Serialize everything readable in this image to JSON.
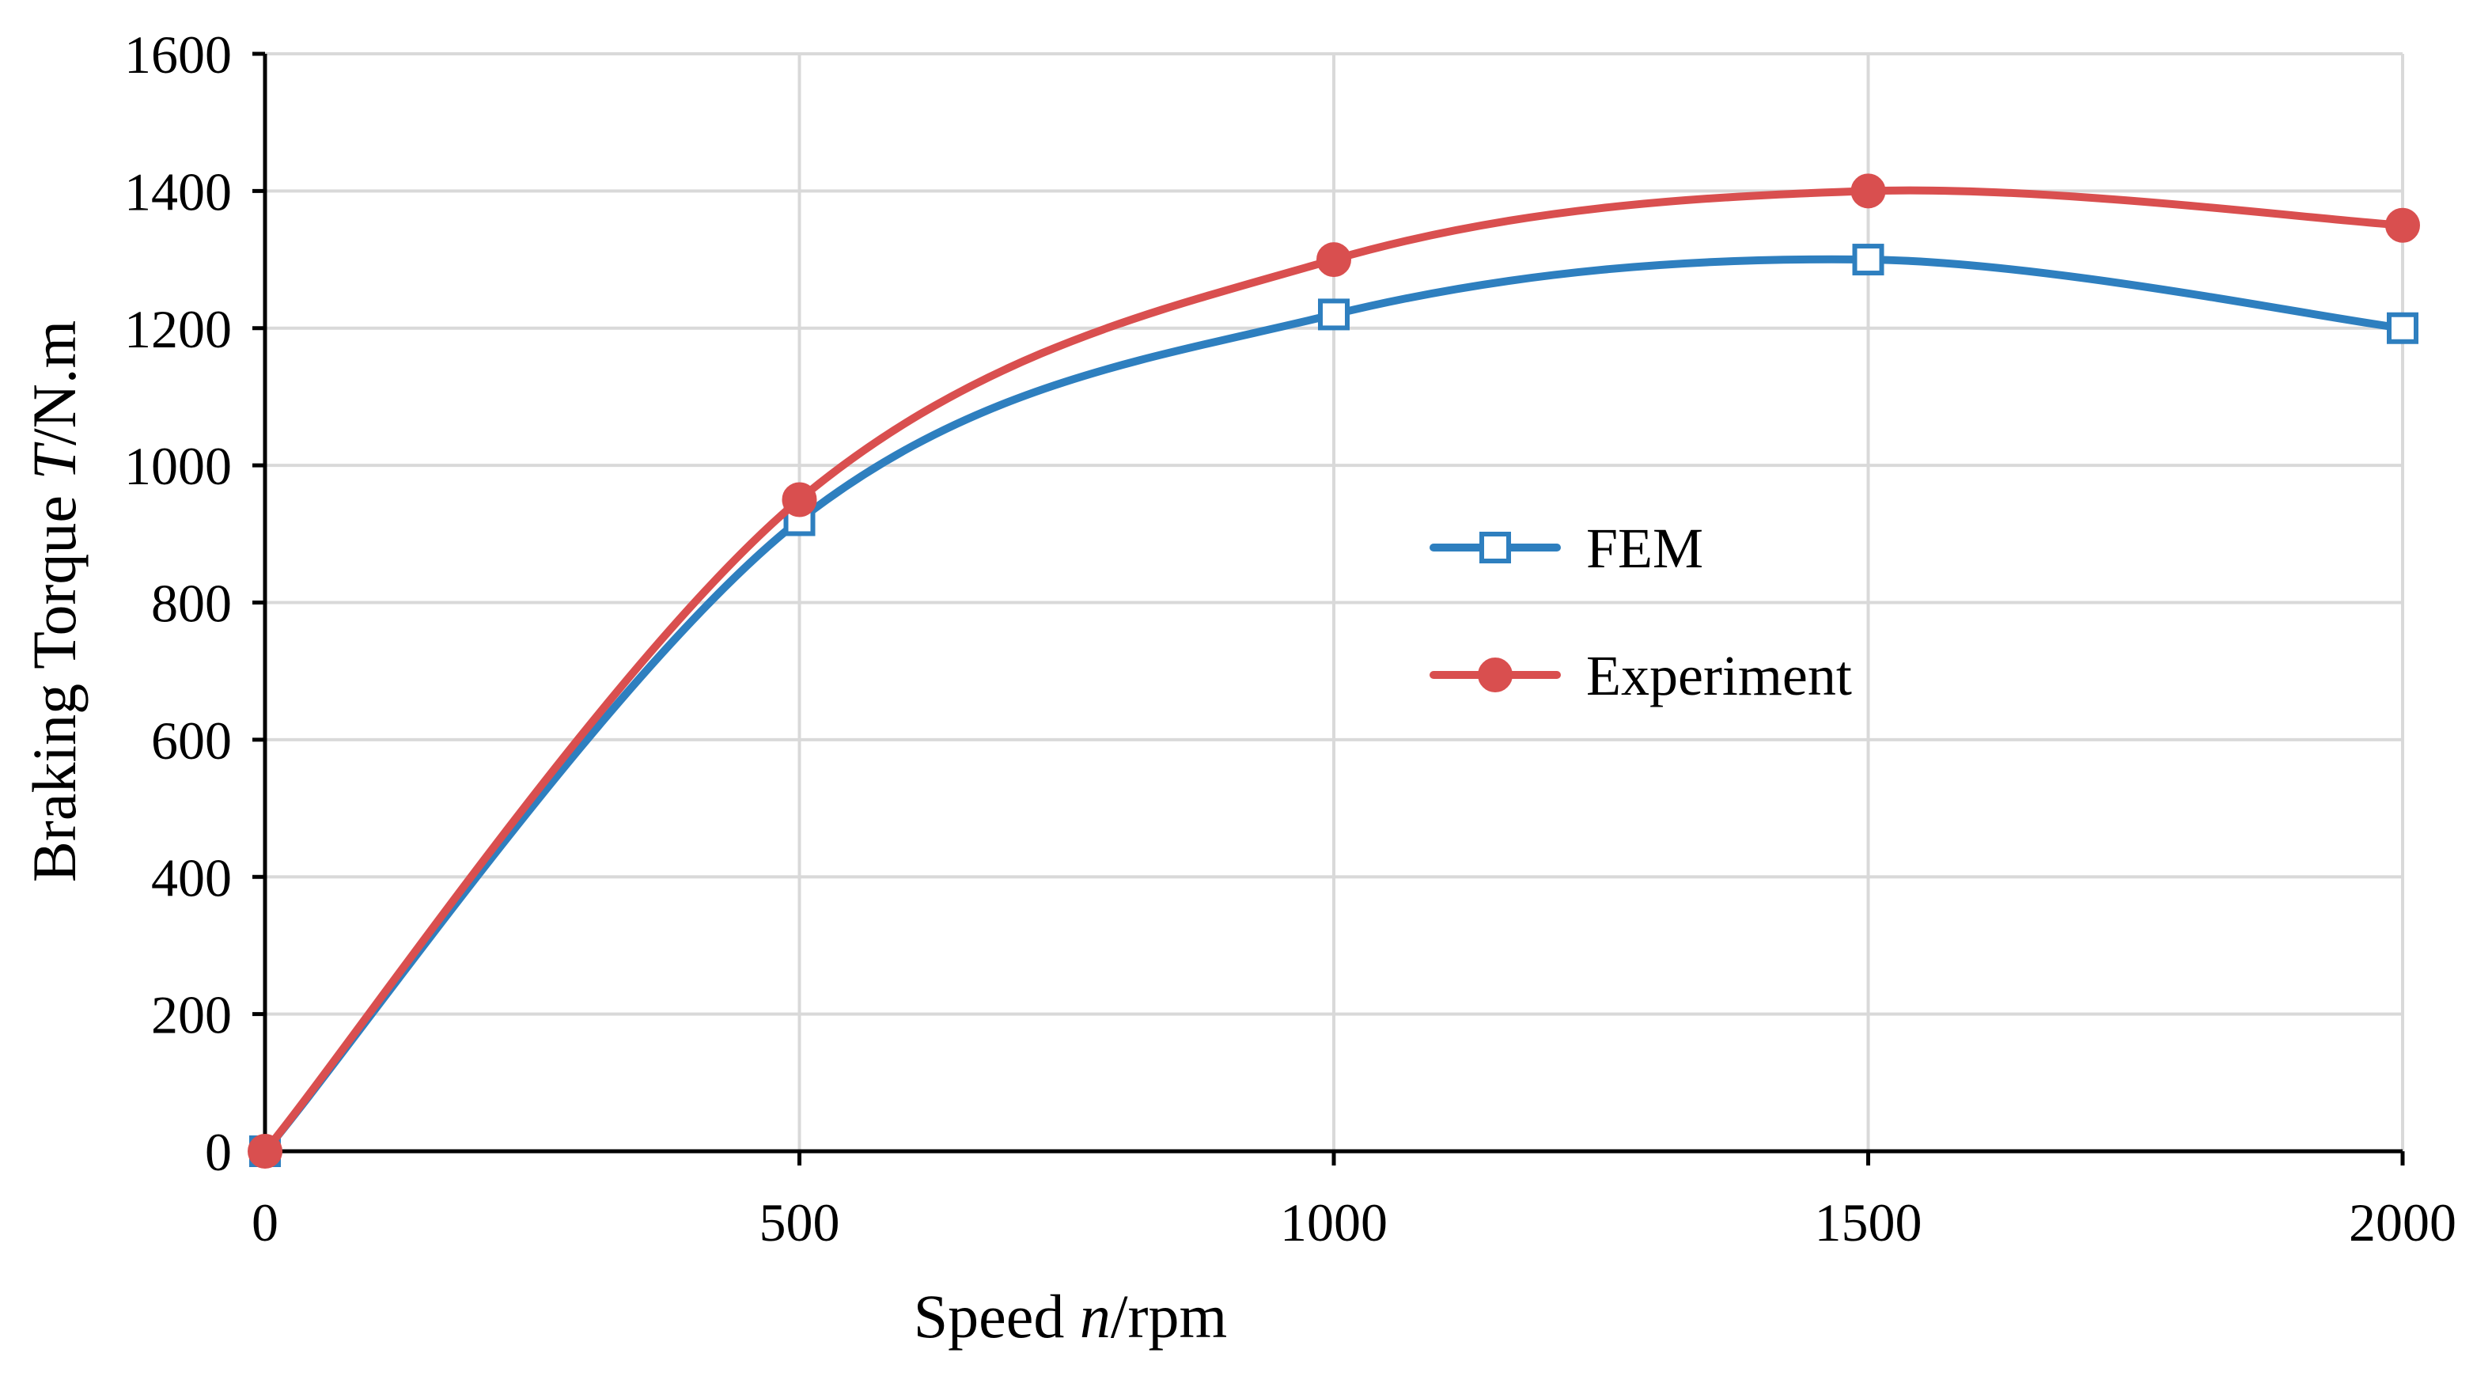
{
  "chart_data": {
    "type": "line",
    "title": "",
    "xlabel_prefix": "Speed ",
    "xlabel_var": "n",
    "xlabel_suffix": "/rpm",
    "ylabel_prefix": "Braking Torque ",
    "ylabel_var": "T",
    "ylabel_suffix": "/N.m",
    "x": [
      0,
      500,
      1000,
      1500,
      2000
    ],
    "xlim": [
      0,
      2000
    ],
    "ylim": [
      0,
      1600
    ],
    "xticks": [
      0,
      500,
      1000,
      1500,
      2000
    ],
    "yticks": [
      0,
      200,
      400,
      600,
      800,
      1000,
      1200,
      1400,
      1600
    ],
    "xtick_labels": [
      "0",
      "500",
      "1000",
      "1500",
      "2000"
    ],
    "ytick_labels": [
      "0",
      "200",
      "400",
      "600",
      "800",
      "1000",
      "1200",
      "1400",
      "1600"
    ],
    "grid": true,
    "legend_position": "center-right",
    "series": [
      {
        "name": "FEM",
        "values": [
          0,
          920,
          1220,
          1300,
          1200
        ],
        "color": "#2e7fbf",
        "marker": "square"
      },
      {
        "name": "Experiment",
        "values": [
          0,
          950,
          1300,
          1400,
          1350
        ],
        "color": "#d94f4f",
        "marker": "circle"
      }
    ]
  }
}
